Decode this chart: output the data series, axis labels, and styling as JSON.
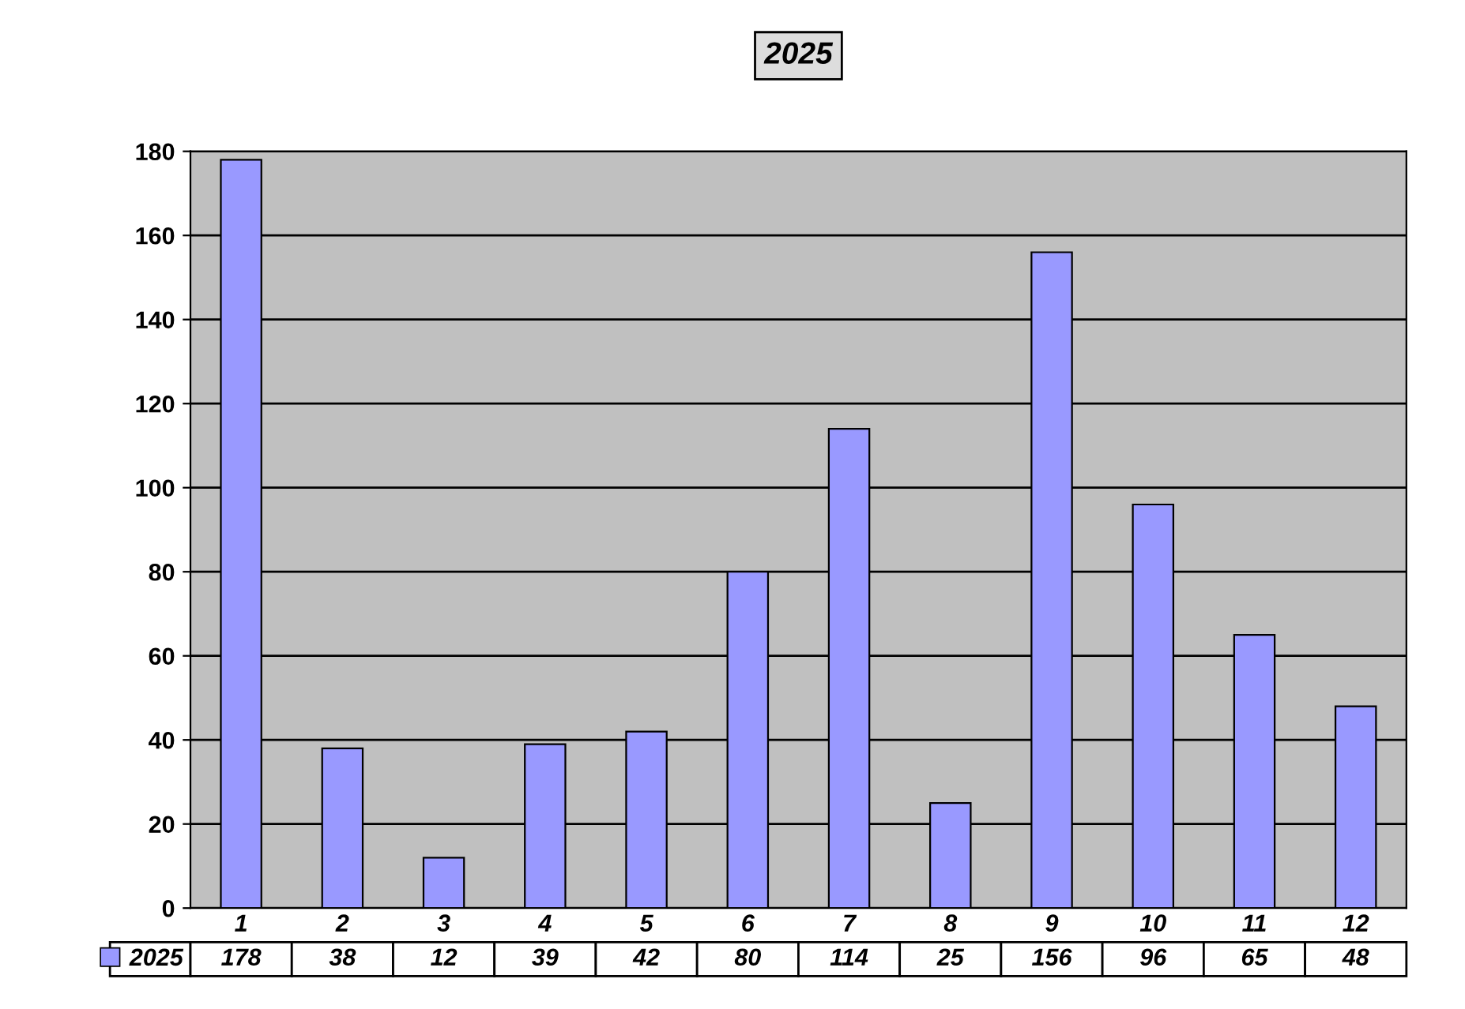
{
  "chart_data": {
    "type": "bar",
    "title": "2025",
    "categories": [
      "1",
      "2",
      "3",
      "4",
      "5",
      "6",
      "7",
      "8",
      "9",
      "10",
      "11",
      "12"
    ],
    "series": [
      {
        "name": "2025",
        "color": "#9999ff",
        "values": [
          178,
          38,
          12,
          39,
          42,
          80,
          114,
          25,
          156,
          96,
          65,
          48
        ]
      }
    ],
    "ylim": [
      0,
      180
    ],
    "yticks": [
      0,
      20,
      40,
      60,
      80,
      100,
      120,
      140,
      160,
      180
    ],
    "grid": "y",
    "data_labels": true,
    "legend": "bottom"
  }
}
